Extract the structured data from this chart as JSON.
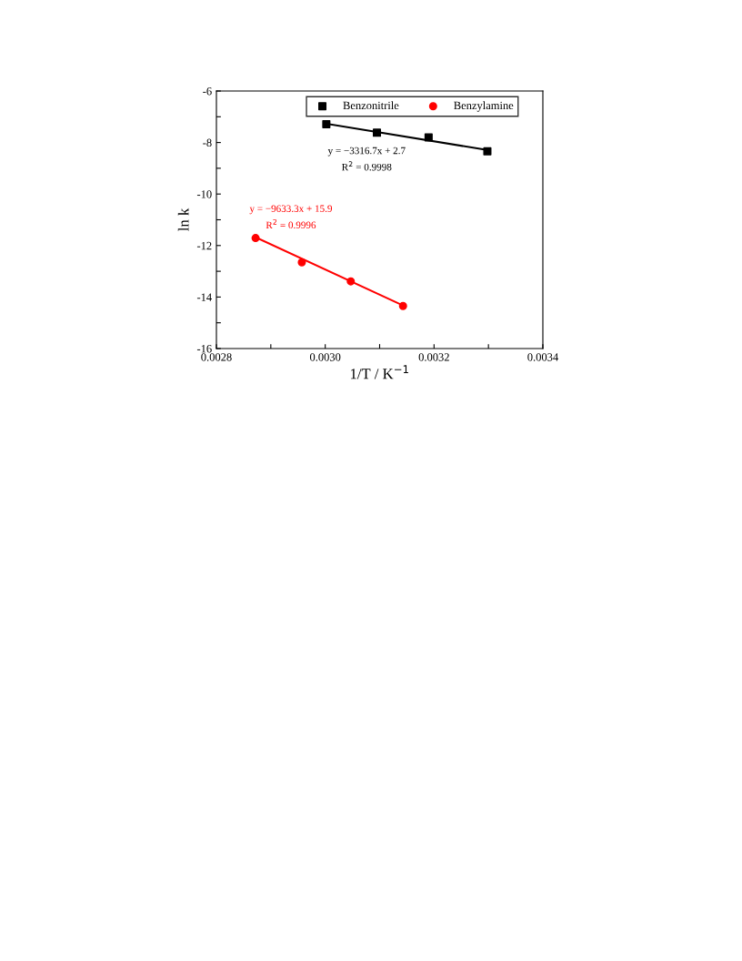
{
  "chart_data": {
    "type": "scatter",
    "xlabel": "1/T / K$^{−1}$",
    "ylabel": "ln k",
    "xlim": [
      0.0028,
      0.0034
    ],
    "xticks": [
      {
        "value": 0.0028,
        "label": "0.0028"
      },
      {
        "value": 0.0029,
        "label": null
      },
      {
        "value": 0.003,
        "label": "0.0030"
      },
      {
        "value": 0.0031,
        "label": null
      },
      {
        "value": 0.0032,
        "label": "0.0032"
      },
      {
        "value": 0.0033,
        "label": null
      },
      {
        "value": 0.0034,
        "label": "0.0034"
      }
    ],
    "ylim": [
      -16,
      -6
    ],
    "yticks": [
      -16,
      {
        "value": -15,
        "label": null
      },
      -14,
      {
        "value": -13,
        "label": null
      },
      -12,
      {
        "value": -11,
        "label": null
      },
      -10,
      {
        "value": -9,
        "label": null
      },
      -8,
      {
        "value": -7,
        "label": null
      },
      -6
    ],
    "grid": false,
    "legend": "top",
    "series": [
      {
        "name": "Benzonitrile",
        "marker": "square",
        "color": "#000000",
        "x": [
          0.003002,
          0.003095,
          0.00319,
          0.003298
        ],
        "values": [
          -7.29,
          -7.62,
          -7.8,
          -8.34
        ]
      },
      {
        "name": "Benzylamine",
        "marker": "circle",
        "color": "#ff0000",
        "x": [
          0.002872,
          0.002957,
          0.003047,
          0.003143
        ],
        "values": [
          -11.71,
          -12.65,
          -13.39,
          -14.35
        ]
      },
      {
        "type": "line",
        "marker": "none",
        "line_style": "solid",
        "color": "#000000",
        "x": [
          0.003002,
          0.003298
        ],
        "values": [
          -7.27,
          -8.29
        ]
      },
      {
        "type": "line",
        "marker": "none",
        "line_style": "solid",
        "color": "#ff0000",
        "x": [
          0.002872,
          0.003143
        ],
        "values": [
          -11.68,
          -14.33
        ]
      }
    ],
    "annotations": [
      "y = −3316.7x + 2.7",
      "R$^{2}$ = 0.9998",
      "y = −9633.3x + 15.9",
      "R$^{2}$ = 0.9996"
    ]
  }
}
